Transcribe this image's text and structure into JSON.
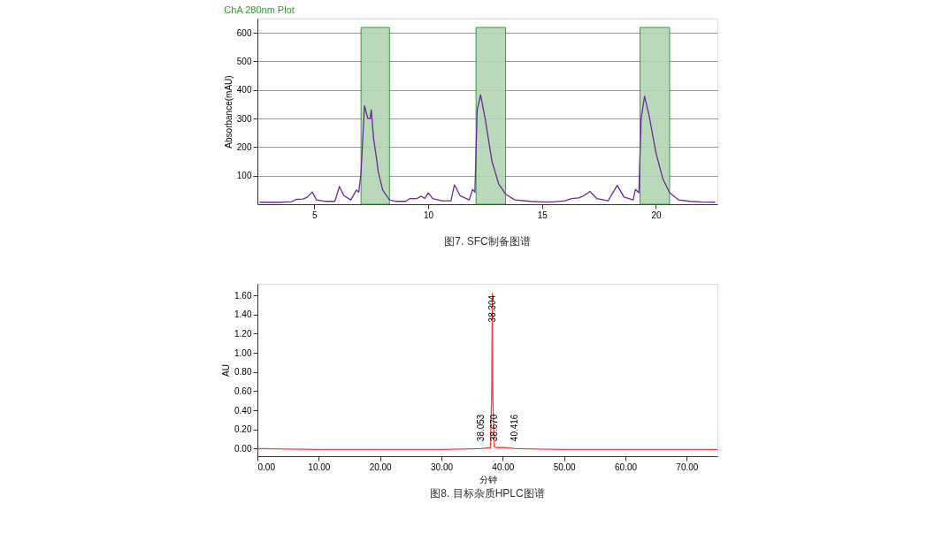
{
  "chart_data": [
    {
      "type": "line",
      "title": "ChA 280nm Plot",
      "ylabel": "Absorbance(mAU)",
      "xlim": [
        2.5,
        22.7
      ],
      "xticks": [
        5,
        10,
        15,
        20
      ],
      "ylim": [
        0,
        650
      ],
      "yticks": [
        100,
        200,
        300,
        400,
        500,
        600
      ],
      "grid": "y",
      "marker": "none",
      "line_style": "solid",
      "bands": [
        {
          "axis": "x",
          "from": 7.05,
          "to": 8.3,
          "color": "#b3d4b3"
        },
        {
          "axis": "x",
          "from": 12.1,
          "to": 13.4,
          "color": "#b3d4b3"
        },
        {
          "axis": "x",
          "from": 19.3,
          "to": 20.6,
          "color": "#b3d4b3"
        }
      ],
      "series": [
        {
          "color": "#6a2c9a",
          "x": [
            2.6,
            3.5,
            4.0,
            4.2,
            4.5,
            4.7,
            4.9,
            5.1,
            5.5,
            5.9,
            6.1,
            6.3,
            6.6,
            6.85,
            6.95,
            7.05,
            7.2,
            7.35,
            7.45,
            7.5,
            7.6,
            7.75,
            7.8,
            8.0,
            8.3,
            8.6,
            9.0,
            9.2,
            9.5,
            9.7,
            9.85,
            10.0,
            10.2,
            10.6,
            11.0,
            11.15,
            11.4,
            11.8,
            11.95,
            12.05,
            12.15,
            12.3,
            12.5,
            12.8,
            13.1,
            13.4,
            13.8,
            14.5,
            15.0,
            15.5,
            16.0,
            16.3,
            16.6,
            16.8,
            17.1,
            17.4,
            17.9,
            18.3,
            18.6,
            19.0,
            19.1,
            19.25,
            19.35,
            19.5,
            19.7,
            20.0,
            20.3,
            20.6,
            21.0,
            21.5,
            22.0,
            22.6
          ],
          "values": [
            7,
            7,
            9,
            17,
            18,
            25,
            43,
            15,
            10,
            10,
            62,
            30,
            15,
            50,
            42,
            110,
            345,
            300,
            300,
            330,
            230,
            150,
            115,
            50,
            15,
            10,
            10,
            20,
            20,
            28,
            20,
            40,
            20,
            12,
            12,
            68,
            30,
            15,
            52,
            42,
            330,
            383,
            300,
            150,
            70,
            35,
            15,
            10,
            8,
            8,
            12,
            20,
            22,
            28,
            45,
            20,
            12,
            66,
            25,
            15,
            52,
            40,
            300,
            378,
            310,
            180,
            90,
            40,
            15,
            10,
            8,
            7
          ]
        }
      ],
      "annotations": [
        "图7. SFC制备图谱"
      ]
    },
    {
      "type": "line",
      "xlabel": "分钟",
      "ylabel": "AU",
      "xlim": [
        0,
        75
      ],
      "xticks": [
        {
          "value": 0,
          "label": "0.00"
        },
        {
          "value": 10,
          "label": "10.00"
        },
        {
          "value": 20,
          "label": "20.00"
        },
        {
          "value": 30,
          "label": "30.00"
        },
        {
          "value": 40,
          "label": "40.00"
        },
        {
          "value": 50,
          "label": "50.00"
        },
        {
          "value": 60,
          "label": "60.00"
        },
        {
          "value": 70,
          "label": "70.00"
        }
      ],
      "ylim": [
        -0.08,
        1.72
      ],
      "yticks": [
        {
          "value": 0,
          "label": "0.00"
        },
        {
          "value": 0.2,
          "label": "0.20"
        },
        {
          "value": 0.4,
          "label": "0.40"
        },
        {
          "value": 0.6,
          "label": "0.60"
        },
        {
          "value": 0.8,
          "label": "0.80"
        },
        {
          "value": 1.0,
          "label": "1.00"
        },
        {
          "value": 1.2,
          "label": "1.20"
        },
        {
          "value": 1.4,
          "label": "1.40"
        },
        {
          "value": 1.6,
          "label": "1.60"
        }
      ],
      "grid": false,
      "marker": "none",
      "line_style": "solid",
      "series": [
        {
          "color": "#ff4040",
          "x": [
            0,
            10,
            30,
            36.5,
            38.0,
            38.2,
            38.3,
            38.4,
            38.6,
            39.0,
            40.4,
            42,
            50,
            75
          ],
          "values": [
            0,
            -0.01,
            -0.01,
            0,
            0.01,
            0.6,
            1.62,
            0.5,
            0.02,
            0.01,
            0.01,
            0,
            -0.01,
            -0.01
          ]
        }
      ],
      "annotations": [
        {
          "text": "38.304",
          "x": 38.304,
          "y": 1.62
        },
        {
          "text": "38.053",
          "x": 38.053,
          "y": 0.02
        },
        {
          "text": "38.670",
          "x": 38.67,
          "y": 0.02
        },
        {
          "text": "40.416",
          "x": 40.416,
          "y": 0.02
        },
        "图8. 目标杂质HPLC图谱"
      ]
    }
  ]
}
